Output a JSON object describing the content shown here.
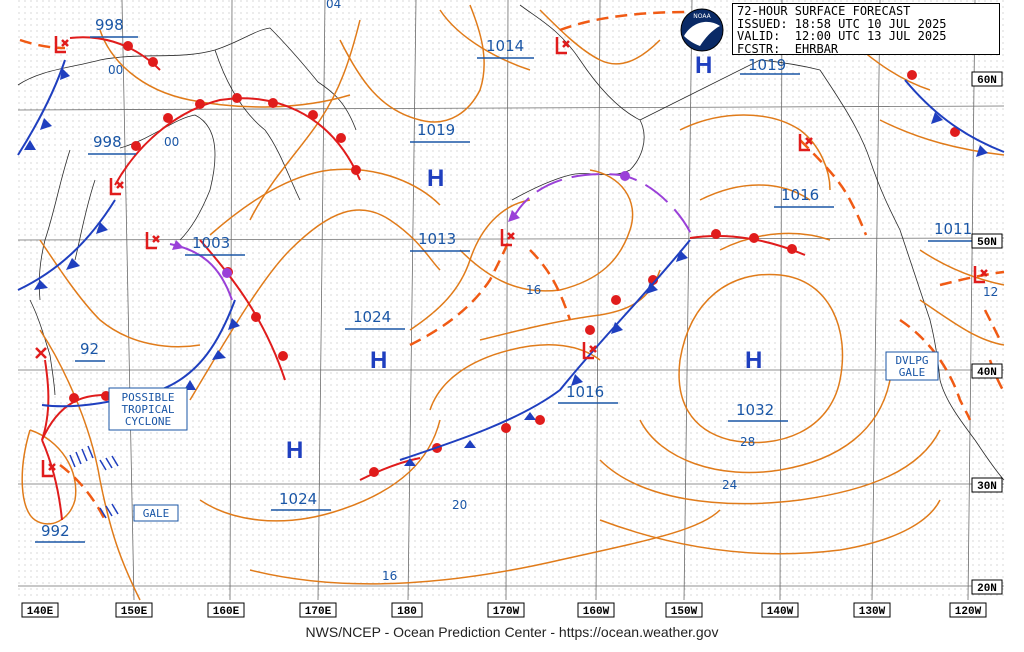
{
  "forecast": {
    "title": "72-HOUR SURFACE FORECAST",
    "issued": "ISSUED: 18:58 UTC 10 JUL 2025",
    "valid": "VALID:  12:00 UTC 13 JUL 2025",
    "forecaster": "FCSTR:  EHRBAR",
    "logo_text": "NOAA"
  },
  "footer": "NWS/NCEP - Ocean Prediction Center - https://ocean.weather.gov",
  "longitudes": [
    "140E",
    "150E",
    "160E",
    "170E",
    "180",
    "170W",
    "160W",
    "150W",
    "140W",
    "130W",
    "120W"
  ],
  "latitudes": [
    "60N",
    "50N",
    "40N",
    "30N",
    "20N"
  ],
  "pressure_values": [
    "998",
    "1014",
    "1019",
    "998",
    "1019",
    "1016",
    "1003",
    "1013",
    "1011",
    "1024",
    "92",
    "1016",
    "1032",
    "1024",
    "992"
  ],
  "isobar_labels": [
    "00",
    "00",
    "16",
    "28",
    "24",
    "20",
    "16",
    "04",
    "12"
  ],
  "pressure_centers": [
    "H",
    "H",
    "H",
    "H",
    "H",
    "H"
  ],
  "annotations": {
    "tropical": [
      "POSSIBLE",
      "TROPICAL",
      "CYCLONE"
    ],
    "gale": "GALE",
    "dvlpg": [
      "DVLPG",
      "GALE"
    ]
  },
  "colors": {
    "isobar": "#e07b1a",
    "warm_front": "#e01c1c",
    "cold_front": "#1f3fbf",
    "occluded_front": "#9a40d8",
    "trough": "#f05a14",
    "land": "#2b2b2b",
    "grid": "#6c6c6c"
  }
}
